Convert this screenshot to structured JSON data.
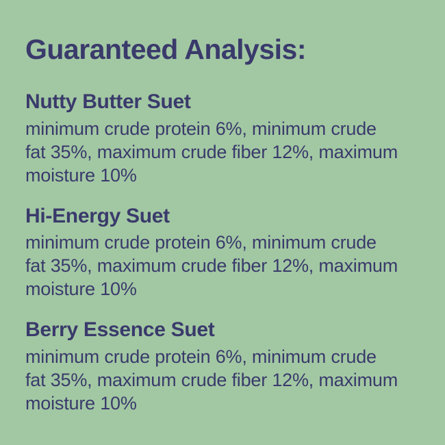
{
  "page": {
    "background_color": "#a2c8a3",
    "text_color": "#3a3a6b"
  },
  "title": "Guaranteed Analysis:",
  "sections": [
    {
      "name": "Nutty Butter Suet",
      "lines": [
        "minimum crude protein 6%, minimum crude",
        "fat 35%, maximum crude fiber 12%, maximum",
        "moisture 10%"
      ]
    },
    {
      "name": "Hi-Energy Suet",
      "lines": [
        "minimum crude protein 6%, minimum crude",
        "fat 35%, maximum crude fiber 12%, maximum",
        "moisture 10%"
      ]
    },
    {
      "name": "Berry Essence Suet",
      "lines": [
        "minimum crude protein 6%, minimum crude",
        "fat 35%, maximum crude fiber 12%, maximum",
        "moisture 10%"
      ]
    }
  ]
}
